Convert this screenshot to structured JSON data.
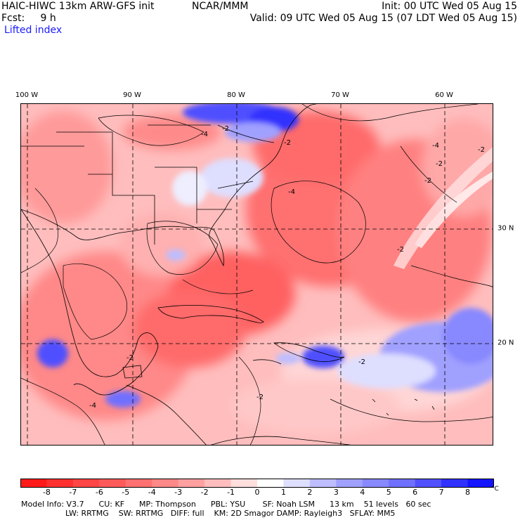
{
  "header": {
    "model_title": "HAIC-HIWC 13km ARW-GFS init",
    "org": "NCAR/MMM",
    "init": "Init: 00 UTC Wed 05 Aug 15",
    "fcst": "Fcst:     9 h",
    "valid": "Valid: 09 UTC Wed 05 Aug 15 (07 LDT Wed 05 Aug 15)",
    "field": "Lifted index"
  },
  "map": {
    "lon_labels": [
      "100 W",
      "90 W",
      "80 W",
      "70 W",
      "60 W"
    ],
    "lat_labels": [
      "30 N",
      "20 N"
    ],
    "contour_labels": [
      "-4",
      "-2"
    ]
  },
  "colorbar": {
    "labels": [
      "-8",
      "-7",
      "-6",
      "-5",
      "-4",
      "-3",
      "-2",
      "-1",
      "0",
      "1",
      "2",
      "3",
      "4",
      "5",
      "6",
      "7",
      "8"
    ],
    "unit": "°C",
    "colors": [
      "#ff1a1a",
      "#ff3030",
      "#ff4545",
      "#ff5a5a",
      "#ff7070",
      "#ff8888",
      "#ffa0a0",
      "#ffbdbd",
      "#ffdede",
      "#ffffff",
      "#dedeff",
      "#bdbdff",
      "#a0a0ff",
      "#8888ff",
      "#7070ff",
      "#5050ff",
      "#3030ff",
      "#1414ff"
    ]
  },
  "footer": {
    "line1": "Model Info: V3.7      CU: KF      MP: Thompson      PBL: YSU       SF: Noah LSM      13 km    51 levels   60 sec",
    "line2": "                  LW: RRTMG    SW: RRTMG   DIFF: full    KM: 2D Smagor DAMP: Rayleigh3   SFLAY: MM5"
  }
}
